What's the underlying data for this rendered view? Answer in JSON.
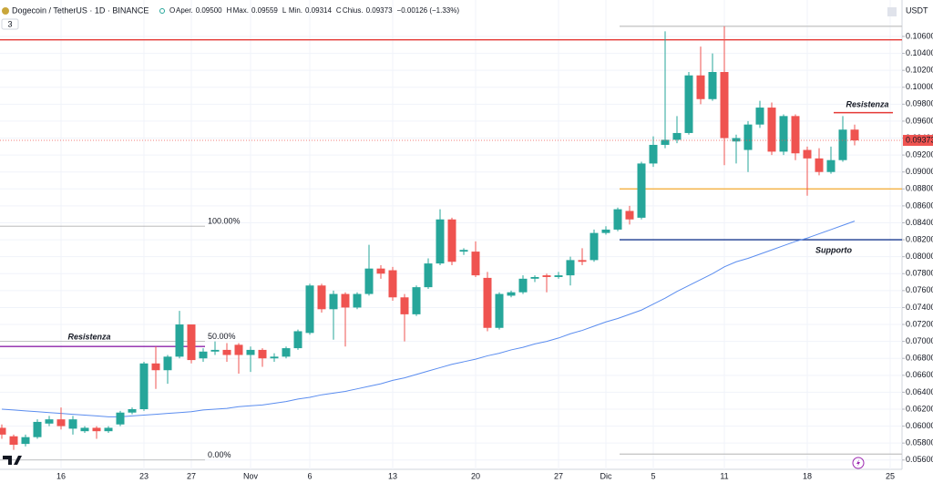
{
  "legend": {
    "symbol": "Dogecoin / TetherUS · 1D · BINANCE",
    "fields": [
      {
        "key": "O",
        "label": "Aper.",
        "value": "0.09500"
      },
      {
        "key": "H",
        "label": "Max.",
        "value": "0.09559"
      },
      {
        "key": "L",
        "label": "Min.",
        "value": "0.09314"
      },
      {
        "key": "C",
        "label": "Chius.",
        "value": "0.09373"
      }
    ],
    "change": "−0.00126 (−1.33%)",
    "indicator_count": "3"
  },
  "chart_data": {
    "type": "candlestick",
    "currency": "USDT",
    "categories": [
      null,
      null,
      null,
      null,
      null,
      "16",
      null,
      null,
      null,
      null,
      null,
      null,
      "23",
      null,
      null,
      null,
      "27",
      null,
      null,
      null,
      null,
      "Nov",
      null,
      null,
      null,
      null,
      "6",
      null,
      null,
      null,
      null,
      null,
      null,
      "13",
      null,
      null,
      null,
      null,
      null,
      null,
      "20",
      null,
      null,
      null,
      null,
      null,
      null,
      "27",
      null,
      null,
      null,
      "Dic",
      null,
      null,
      null,
      "5",
      null,
      null,
      null,
      null,
      null,
      "11",
      null,
      null,
      null,
      null,
      null,
      null,
      "18",
      null,
      null,
      null,
      null,
      null,
      null,
      "25"
    ],
    "open": [
      0.0598,
      0.0588,
      0.0579,
      0.0587,
      0.0603,
      0.0608,
      0.0597,
      0.0594,
      0.0598,
      0.0594,
      0.0602,
      0.0616,
      0.062,
      0.0674,
      0.0666,
      0.0682,
      0.072,
      0.068,
      0.0688,
      0.069,
      0.0696,
      0.0684,
      0.069,
      0.068,
      0.0682,
      0.0692,
      0.071,
      0.0766,
      0.0738,
      0.0756,
      0.074,
      0.0756,
      0.0786,
      0.0784,
      0.0752,
      0.0732,
      0.0764,
      0.0792,
      0.0844,
      0.0806,
      0.0806,
      0.0775,
      0.0716,
      0.0754,
      0.0758,
      0.0774,
      0.0778,
      0.0776,
      0.0778,
      0.0796,
      0.0796,
      0.0828,
      0.0832,
      0.0854,
      0.0846,
      0.091,
      0.0932,
      0.0938,
      0.0946,
      0.1014,
      0.0986,
      0.1018,
      0.0936,
      0.0926,
      0.0956,
      0.0976,
      0.0924,
      0.0966,
      0.0926,
      0.0916,
      0.09,
      0.0914,
      0.095,
      null,
      null,
      null
    ],
    "high": [
      0.0602,
      0.059,
      0.059,
      0.0608,
      0.0612,
      0.0622,
      0.0612,
      0.06,
      0.06,
      0.06,
      0.0618,
      0.0622,
      0.0676,
      0.0694,
      0.0684,
      0.0736,
      0.072,
      0.0692,
      0.07,
      0.0698,
      0.0698,
      0.0694,
      0.0692,
      0.0686,
      0.0694,
      0.0714,
      0.0768,
      0.0768,
      0.076,
      0.0758,
      0.0758,
      0.0814,
      0.079,
      0.0788,
      0.0756,
      0.0766,
      0.0798,
      0.0856,
      0.0846,
      0.081,
      0.0818,
      0.0782,
      0.0758,
      0.076,
      0.0778,
      0.0778,
      0.078,
      0.0782,
      0.08,
      0.081,
      0.0832,
      0.0836,
      0.0858,
      0.086,
      0.0912,
      0.0942,
      0.1066,
      0.0966,
      0.1018,
      0.1048,
      0.104,
      0.1072,
      0.0944,
      0.096,
      0.0984,
      0.0982,
      0.0968,
      0.0968,
      0.093,
      0.0928,
      0.093,
      0.0966,
      0.09559,
      null,
      null,
      null
    ],
    "low": [
      0.0585,
      0.0572,
      0.0576,
      0.0585,
      0.06,
      0.0596,
      0.059,
      0.0592,
      0.0585,
      0.0592,
      0.06,
      0.0614,
      0.0618,
      0.0644,
      0.065,
      0.068,
      0.0674,
      0.0676,
      0.0684,
      0.0676,
      0.0662,
      0.0664,
      0.067,
      0.0676,
      0.068,
      0.069,
      0.0708,
      0.0734,
      0.0702,
      0.0694,
      0.0738,
      0.0754,
      0.0774,
      0.0748,
      0.07,
      0.073,
      0.0762,
      0.079,
      0.079,
      0.0802,
      0.0776,
      0.0712,
      0.0714,
      0.0752,
      0.0756,
      0.077,
      0.0758,
      0.0774,
      0.0766,
      0.079,
      0.0794,
      0.0826,
      0.083,
      0.0838,
      0.0844,
      0.0906,
      0.0928,
      0.0934,
      0.0944,
      0.098,
      0.0984,
      0.0908,
      0.091,
      0.09,
      0.0952,
      0.092,
      0.092,
      0.0914,
      0.0872,
      0.0896,
      0.0898,
      0.0912,
      0.09314,
      null,
      null,
      null
    ],
    "close": [
      0.059,
      0.0578,
      0.0587,
      0.0605,
      0.0608,
      0.06,
      0.0608,
      0.0598,
      0.0594,
      0.0598,
      0.0616,
      0.062,
      0.0674,
      0.0666,
      0.0682,
      0.072,
      0.0678,
      0.0688,
      0.069,
      0.0684,
      0.0684,
      0.069,
      0.068,
      0.0682,
      0.0692,
      0.0712,
      0.0766,
      0.0738,
      0.0756,
      0.074,
      0.0756,
      0.0786,
      0.078,
      0.0752,
      0.0732,
      0.0764,
      0.0792,
      0.0844,
      0.0794,
      0.0808,
      0.0778,
      0.0716,
      0.0756,
      0.0758,
      0.0774,
      0.0776,
      0.0776,
      0.0778,
      0.0796,
      0.0794,
      0.0828,
      0.0832,
      0.0856,
      0.0844,
      0.091,
      0.0932,
      0.0938,
      0.0946,
      0.1014,
      0.0986,
      0.1018,
      0.094,
      0.094,
      0.0956,
      0.0976,
      0.0924,
      0.0966,
      0.0922,
      0.0916,
      0.09,
      0.0914,
      0.095,
      0.09373,
      null,
      null,
      null
    ],
    "up_color": "#26a69a",
    "down_color": "#ef5350",
    "moving_average": {
      "color": "#5b8def",
      "values": [
        0.062,
        0.0619,
        0.0618,
        0.0617,
        0.0616,
        0.0615,
        0.0614,
        0.0613,
        0.0612,
        0.0611,
        0.0611,
        0.0612,
        0.0613,
        0.0614,
        0.0615,
        0.0616,
        0.0617,
        0.0619,
        0.062,
        0.0621,
        0.0623,
        0.0624,
        0.0625,
        0.0627,
        0.0629,
        0.0632,
        0.0634,
        0.0637,
        0.0639,
        0.0641,
        0.0644,
        0.0647,
        0.065,
        0.0654,
        0.0657,
        0.0661,
        0.0665,
        0.0669,
        0.0673,
        0.0676,
        0.0679,
        0.0683,
        0.0686,
        0.069,
        0.0693,
        0.0697,
        0.07,
        0.0704,
        0.0709,
        0.0713,
        0.0718,
        0.0723,
        0.0727,
        0.0732,
        0.0737,
        0.0744,
        0.0751,
        0.0759,
        0.0766,
        0.0773,
        0.078,
        0.0788,
        0.0794,
        0.0798,
        0.0803,
        0.0808,
        0.0813,
        0.0818,
        0.0822,
        0.0827,
        0.0832,
        0.0837,
        0.0842,
        null,
        null,
        null
      ]
    },
    "levels": [
      {
        "value": 0.1056,
        "color": "#e53935"
      },
      {
        "value": 0.088,
        "color": "#f5b041"
      },
      {
        "value": 0.082,
        "color": "#1a3a8f",
        "label": "Supporto",
        "label_color": "#3f7fd8"
      },
      {
        "value": 0.0694,
        "color": "#8e24aa",
        "label": "Resistenza",
        "label_color": "#8e24aa"
      },
      {
        "value": 0.097,
        "color": "#e53935",
        "label": "Resistenza",
        "label_color": "#e53935"
      },
      {
        "value": 0.1072,
        "color": "#c7c7c7"
      },
      {
        "value": 0.0567,
        "color": "#c7c7c7"
      }
    ],
    "fib": [
      {
        "value": 0.0836,
        "label": "100.00%"
      },
      {
        "value": 0.07,
        "label": "50.00%"
      },
      {
        "value": 0.056,
        "label": "0.00%"
      }
    ],
    "ylim": [
      0.0549,
      0.1103
    ],
    "yticks": [
      {
        "value": 0.106,
        "label": "0.10600"
      },
      {
        "value": 0.104,
        "label": "0.10400"
      },
      {
        "value": 0.102,
        "label": "0.10200"
      },
      {
        "value": 0.1,
        "label": "0.10000"
      },
      {
        "value": 0.098,
        "label": "0.09800"
      },
      {
        "value": 0.096,
        "label": "0.09600"
      },
      {
        "value": 0.094,
        "label": "0.09400"
      },
      {
        "value": 0.092,
        "label": "0.09200"
      },
      {
        "value": 0.09,
        "label": "0.09000"
      },
      {
        "value": 0.088,
        "label": "0.08800"
      },
      {
        "value": 0.086,
        "label": "0.08600"
      },
      {
        "value": 0.084,
        "label": "0.08400"
      },
      {
        "value": 0.082,
        "label": "0.08200"
      },
      {
        "value": 0.08,
        "label": "0.08000"
      },
      {
        "value": 0.078,
        "label": "0.07800"
      },
      {
        "value": 0.076,
        "label": "0.07600"
      },
      {
        "value": 0.074,
        "label": "0.07400"
      },
      {
        "value": 0.072,
        "label": "0.07200"
      },
      {
        "value": 0.07,
        "label": "0.07000"
      },
      {
        "value": 0.068,
        "label": "0.06800"
      },
      {
        "value": 0.066,
        "label": "0.06600"
      },
      {
        "value": 0.064,
        "label": "0.06400"
      },
      {
        "value": 0.062,
        "label": "0.06200"
      },
      {
        "value": 0.06,
        "label": "0.06000"
      },
      {
        "value": 0.058,
        "label": "0.05800"
      },
      {
        "value": 0.056,
        "label": "0.05600"
      }
    ],
    "grid": true
  }
}
